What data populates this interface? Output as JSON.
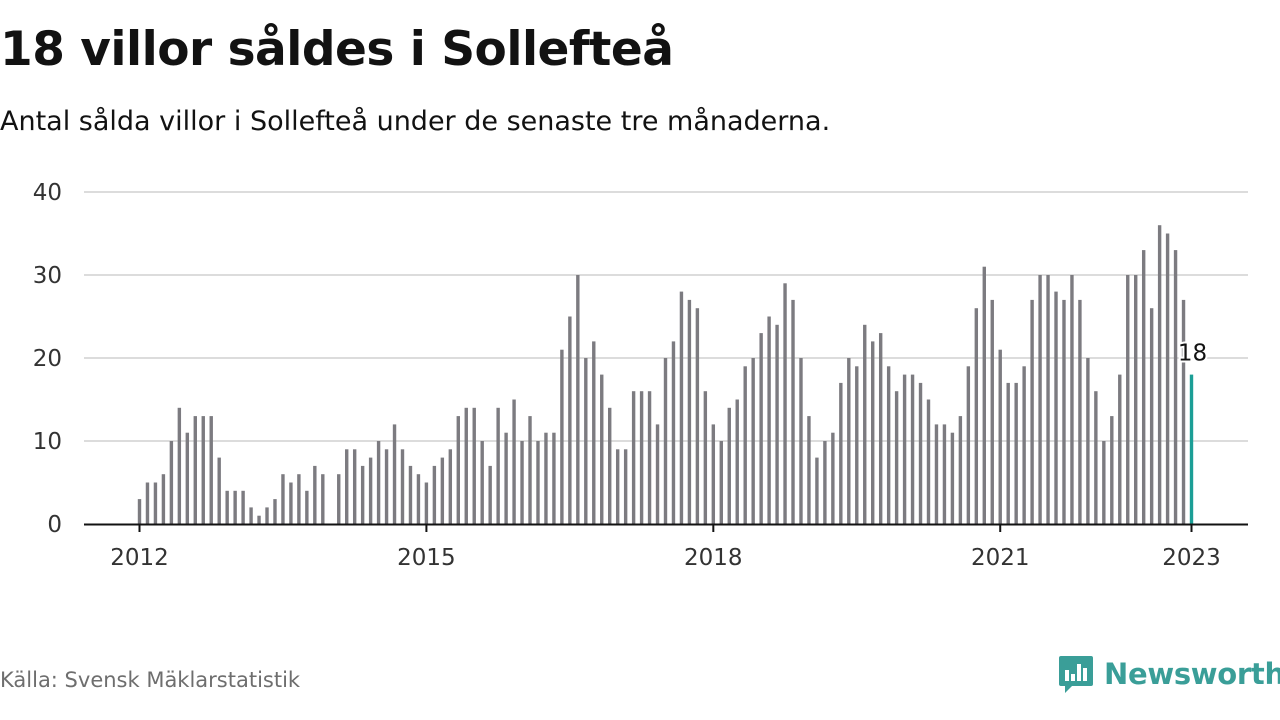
{
  "header": {
    "title": "18 villor såldes i Sollefteå",
    "subtitle": "Antal sålda villor i Sollefteå under de senaste tre månaderna."
  },
  "footer": {
    "source": "Källa: Svensk Mäklarstatistik",
    "brand": "Newsworthy",
    "brand_icon": "chart-logo-icon"
  },
  "colors": {
    "bar": "#7c7b80",
    "highlight": "#1b9e96",
    "grid": "#dcdcdc",
    "axis": "#121212",
    "brand": "#3a9e98"
  },
  "chart_data": {
    "type": "bar",
    "title": "18 villor såldes i Sollefteå",
    "subtitle": "Antal sålda villor i Sollefteå under de senaste tre månaderna.",
    "xlabel": "",
    "ylabel": "",
    "ylim": [
      0,
      40
    ],
    "yticks": [
      0,
      10,
      20,
      30,
      40
    ],
    "xticks": [
      "2012",
      "2015",
      "2018",
      "2021",
      "2023"
    ],
    "grid": true,
    "legend": "none",
    "start_month": "2012-01",
    "end_month": "2023-01",
    "highlight_last": true,
    "last_value_label": "18",
    "values": [
      3,
      5,
      5,
      6,
      10,
      14,
      11,
      13,
      13,
      13,
      8,
      4,
      4,
      4,
      2,
      1,
      2,
      3,
      6,
      5,
      6,
      4,
      7,
      6,
      null,
      6,
      9,
      9,
      7,
      8,
      10,
      9,
      12,
      9,
      7,
      6,
      5,
      7,
      8,
      9,
      13,
      14,
      14,
      10,
      7,
      14,
      11,
      15,
      10,
      13,
      10,
      11,
      11,
      21,
      25,
      30,
      20,
      22,
      18,
      14,
      9,
      9,
      16,
      16,
      16,
      12,
      20,
      22,
      28,
      27,
      26,
      16,
      12,
      10,
      14,
      15,
      19,
      20,
      23,
      25,
      24,
      29,
      27,
      20,
      13,
      8,
      10,
      11,
      17,
      20,
      19,
      24,
      22,
      23,
      19,
      16,
      18,
      18,
      17,
      15,
      12,
      12,
      11,
      13,
      19,
      26,
      31,
      27,
      21,
      17,
      17,
      19,
      27,
      30,
      30,
      28,
      27,
      30,
      27,
      20,
      16,
      10,
      13,
      18,
      30,
      30,
      33,
      26,
      36,
      35,
      33,
      27,
      18
    ]
  }
}
